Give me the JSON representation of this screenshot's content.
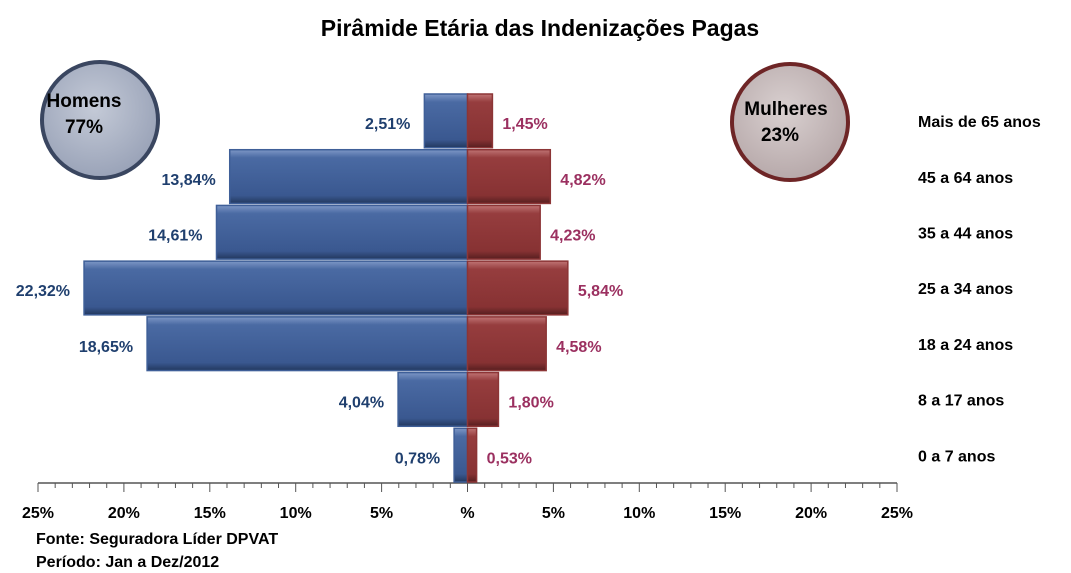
{
  "chart_data": {
    "type": "pyramid",
    "title": "Pirâmide Etária das Indenizações Pagas",
    "categories": [
      "Mais de 65 anos",
      "45 a 64 anos",
      "35 a 44 anos",
      "25 a 34 anos",
      "18 a 24 anos",
      "8 a 17 anos",
      "0 a 7 anos"
    ],
    "series": [
      {
        "name": "Homens",
        "side": "left",
        "color": "#3f5f98",
        "label_color": "#1f3f6e",
        "share": 77,
        "share_label": "77%",
        "values": [
          2.51,
          13.84,
          14.61,
          22.32,
          18.65,
          4.04,
          0.78
        ],
        "value_labels": [
          "2,51%",
          "13,84%",
          "14,61%",
          "22,32%",
          "18,65%",
          "4,04%",
          "0,78%"
        ]
      },
      {
        "name": "Mulheres",
        "side": "right",
        "color": "#8c3536",
        "label_color": "#9b3060",
        "share": 23,
        "share_label": "23%",
        "values": [
          1.45,
          4.82,
          4.23,
          5.84,
          4.58,
          1.8,
          0.53
        ],
        "value_labels": [
          "1,45%",
          "4,82%",
          "4,23%",
          "5,84%",
          "4,58%",
          "1,80%",
          "0,53%"
        ]
      }
    ],
    "xlim": [
      -25,
      25
    ],
    "xticks": [
      {
        "value": -25,
        "label": "25%"
      },
      {
        "value": -20,
        "label": "20%"
      },
      {
        "value": -15,
        "label": "15%"
      },
      {
        "value": -10,
        "label": "10%"
      },
      {
        "value": -5,
        "label": "5%"
      },
      {
        "value": 0,
        "label": "%"
      },
      {
        "value": 5,
        "label": "5%"
      },
      {
        "value": 10,
        "label": "10%"
      },
      {
        "value": 15,
        "label": "15%"
      },
      {
        "value": 20,
        "label": "20%"
      },
      {
        "value": 25,
        "label": "25%"
      }
    ],
    "xminorticks": [
      -24,
      -23,
      -22,
      -21,
      -19,
      -18,
      -17,
      -16,
      -14,
      -13,
      -12,
      -11,
      -9,
      -8,
      -7,
      -6,
      -4,
      -3,
      -2,
      -1,
      1,
      2,
      3,
      4,
      6,
      7,
      8,
      9,
      11,
      12,
      13,
      14,
      16,
      17,
      18,
      19,
      21,
      22,
      23,
      24
    ],
    "source": "Fonte: Seguradora Líder DPVAT",
    "period": "Período: Jan a Dez/2012"
  }
}
